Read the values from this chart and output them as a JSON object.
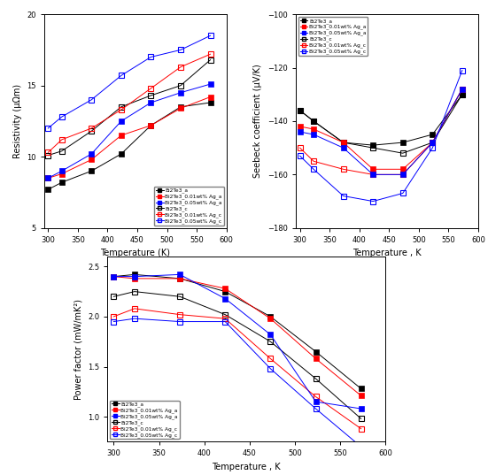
{
  "temp": [
    300,
    323,
    373,
    423,
    473,
    523,
    573
  ],
  "resistivity": {
    "Bi2Te3_a": [
      7.7,
      8.2,
      9.0,
      10.2,
      12.2,
      13.5,
      13.8
    ],
    "Bi2Te3_001Ag_a": [
      8.5,
      8.8,
      9.8,
      11.5,
      12.2,
      13.4,
      14.2
    ],
    "Bi2Te3_005Ag_a": [
      8.5,
      9.0,
      10.2,
      12.5,
      13.8,
      14.5,
      15.1
    ],
    "Bi2Te3_c": [
      10.1,
      10.4,
      11.8,
      13.5,
      14.3,
      15.0,
      16.8
    ],
    "Bi2Te3_001Ag_c": [
      10.3,
      11.2,
      12.0,
      13.3,
      14.8,
      16.3,
      17.2
    ],
    "Bi2Te3_005Ag_c": [
      12.0,
      12.8,
      14.0,
      15.7,
      17.0,
      17.5,
      18.5
    ]
  },
  "seebeck": {
    "Bi2Te3_a": [
      -136,
      -140,
      -148,
      -149,
      -148,
      -145,
      -130
    ],
    "Bi2Te3_001Ag_a": [
      -142,
      -143,
      -148,
      -158,
      -158,
      -148,
      -128
    ],
    "Bi2Te3_005Ag_a": [
      -144,
      -145,
      -150,
      -160,
      -160,
      -148,
      -128
    ],
    "Bi2Te3_c": [
      -136,
      -140,
      -148,
      -150,
      -152,
      -148,
      -130
    ],
    "Bi2Te3_001Ag_c": [
      -150,
      -155,
      -158,
      -160,
      -160,
      -148,
      -128
    ],
    "Bi2Te3_005Ag_c": [
      -153,
      -158,
      -168,
      -170,
      -167,
      -150,
      -121
    ]
  },
  "powerfactor": {
    "Bi2Te3_a": [
      2.4,
      2.42,
      2.38,
      2.25,
      2.0,
      1.65,
      1.28
    ],
    "Bi2Te3_001Ag_a": [
      2.4,
      2.38,
      2.38,
      2.28,
      1.98,
      1.58,
      1.21
    ],
    "Bi2Te3_005Ag_a": [
      2.4,
      2.4,
      2.42,
      2.18,
      1.82,
      1.15,
      1.08
    ],
    "Bi2Te3_c": [
      2.2,
      2.25,
      2.2,
      2.02,
      1.75,
      1.38,
      0.98
    ],
    "Bi2Te3_001Ag_c": [
      2.0,
      2.08,
      2.02,
      1.98,
      1.58,
      1.2,
      0.88
    ],
    "Bi2Te3_005Ag_c": [
      1.95,
      1.98,
      1.95,
      1.95,
      1.48,
      1.08,
      0.7
    ]
  },
  "legend_labels": [
    "Bi2Te3_a",
    "Bi2Te3_0.01wt% Ag_a",
    "Bi2Te3_0.05wt% Ag_a",
    "Bi2Te3_c",
    "Bi2Te3_0.01wt% Ag_c",
    "Bi2Te3_0.05wt% Ag_c"
  ],
  "colors": [
    "black",
    "red",
    "blue"
  ],
  "resistivity_ylim": [
    5,
    20
  ],
  "seebeck_ylim": [
    -180,
    -100
  ],
  "powerfactor_ylim": [
    0.75,
    2.6
  ],
  "xlabel_res": "Temperature (K)",
  "xlabel_see": "Temperature , K",
  "xlabel_pow": "Temperature , K",
  "ylabel_resistivity": "Resistivity (μΩm)",
  "ylabel_seebeck": "Seebeck coefficient (μV/K)",
  "ylabel_powerfactor": "Power factor (mW/mK²)"
}
